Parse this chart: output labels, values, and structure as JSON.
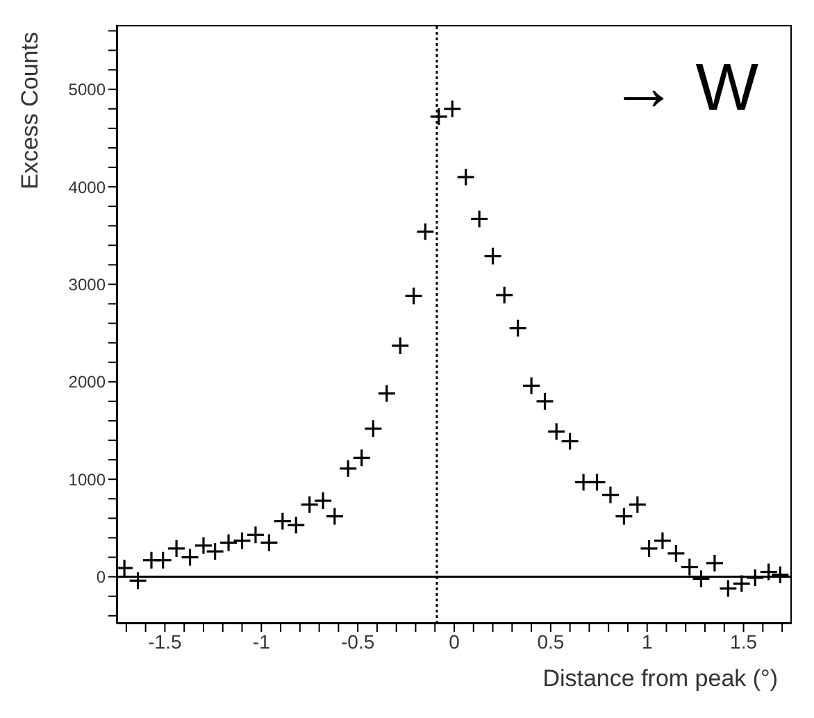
{
  "chart_data": {
    "type": "scatter",
    "xlabel": "Distance from peak (°)",
    "ylabel": "Excess Counts",
    "annotations": [
      "→ W"
    ],
    "marker": "cross",
    "color": "#000000",
    "x": [
      -1.71,
      -1.64,
      -1.57,
      -1.51,
      -1.44,
      -1.37,
      -1.3,
      -1.24,
      -1.17,
      -1.1,
      -1.03,
      -0.96,
      -0.89,
      -0.82,
      -0.75,
      -0.68,
      -0.62,
      -0.55,
      -0.48,
      -0.42,
      -0.35,
      -0.28,
      -0.21,
      -0.15,
      -0.08,
      -0.01,
      0.06,
      0.13,
      0.2,
      0.26,
      0.33,
      0.4,
      0.47,
      0.53,
      0.6,
      0.67,
      0.74,
      0.81,
      0.88,
      0.95,
      1.01,
      1.08,
      1.15,
      1.22,
      1.28,
      1.35,
      1.42,
      1.49,
      1.56,
      1.63,
      1.69
    ],
    "values": [
      90,
      -40,
      170,
      170,
      290,
      200,
      320,
      260,
      350,
      370,
      430,
      350,
      570,
      530,
      740,
      780,
      620,
      1110,
      1220,
      1520,
      1880,
      2370,
      2880,
      3540,
      4720,
      4800,
      4100,
      3670,
      3290,
      2890,
      2550,
      1960,
      1800,
      1490,
      1390,
      970,
      970,
      840,
      620,
      740,
      290,
      370,
      240,
      100,
      -20,
      140,
      -120,
      -70,
      -10,
      50,
      20
    ],
    "xlim": [
      -1.75,
      1.75
    ],
    "xticks": [
      {
        "value": -1.7,
        "label": null
      },
      {
        "value": -1.6,
        "label": null
      },
      -1.5,
      {
        "value": -1.4,
        "label": null
      },
      {
        "value": -1.3,
        "label": null
      },
      {
        "value": -1.2,
        "label": null
      },
      {
        "value": -1.1,
        "label": null
      },
      -1,
      {
        "value": -0.9,
        "label": null
      },
      {
        "value": -0.8,
        "label": null
      },
      {
        "value": -0.7,
        "label": null
      },
      {
        "value": -0.6,
        "label": null
      },
      -0.5,
      {
        "value": -0.4,
        "label": null
      },
      {
        "value": -0.3,
        "label": null
      },
      {
        "value": -0.2,
        "label": null
      },
      {
        "value": -0.1,
        "label": null
      },
      0,
      {
        "value": 0.1,
        "label": null
      },
      {
        "value": 0.2,
        "label": null
      },
      {
        "value": 0.3,
        "label": null
      },
      {
        "value": 0.4,
        "label": null
      },
      0.5,
      {
        "value": 0.6,
        "label": null
      },
      {
        "value": 0.7,
        "label": null
      },
      {
        "value": 0.8,
        "label": null
      },
      {
        "value": 0.9,
        "label": null
      },
      1,
      {
        "value": 1.1,
        "label": null
      },
      {
        "value": 1.2,
        "label": null
      },
      {
        "value": 1.3,
        "label": null
      },
      {
        "value": 1.4,
        "label": null
      },
      1.5,
      {
        "value": 1.6,
        "label": null
      },
      {
        "value": 1.7,
        "label": null
      }
    ],
    "ylim": [
      -480,
      5660
    ],
    "yticks": [
      {
        "value": -400,
        "label": null
      },
      {
        "value": -200,
        "label": null
      },
      0,
      {
        "value": 200,
        "label": null
      },
      {
        "value": 400,
        "label": null
      },
      {
        "value": 600,
        "label": null
      },
      {
        "value": 800,
        "label": null
      },
      1000,
      {
        "value": 1200,
        "label": null
      },
      {
        "value": 1400,
        "label": null
      },
      {
        "value": 1600,
        "label": null
      },
      {
        "value": 1800,
        "label": null
      },
      2000,
      {
        "value": 2200,
        "label": null
      },
      {
        "value": 2400,
        "label": null
      },
      {
        "value": 2600,
        "label": null
      },
      {
        "value": 2800,
        "label": null
      },
      3000,
      {
        "value": 3200,
        "label": null
      },
      {
        "value": 3400,
        "label": null
      },
      {
        "value": 3600,
        "label": null
      },
      {
        "value": 3800,
        "label": null
      },
      4000,
      {
        "value": 4200,
        "label": null
      },
      {
        "value": 4400,
        "label": null
      },
      {
        "value": 4600,
        "label": null
      },
      {
        "value": 4800,
        "label": null
      },
      5000,
      {
        "value": 5200,
        "label": null
      },
      {
        "value": 5400,
        "label": null
      },
      {
        "value": 5600,
        "label": null
      }
    ],
    "ref_lines": [
      {
        "axis": "x",
        "value": -0.09,
        "line_style": "dotted",
        "color": "#000000"
      },
      {
        "axis": "y",
        "value": 0,
        "line_style": "solid",
        "color": "#000000"
      }
    ],
    "grid": false,
    "legend": false
  }
}
